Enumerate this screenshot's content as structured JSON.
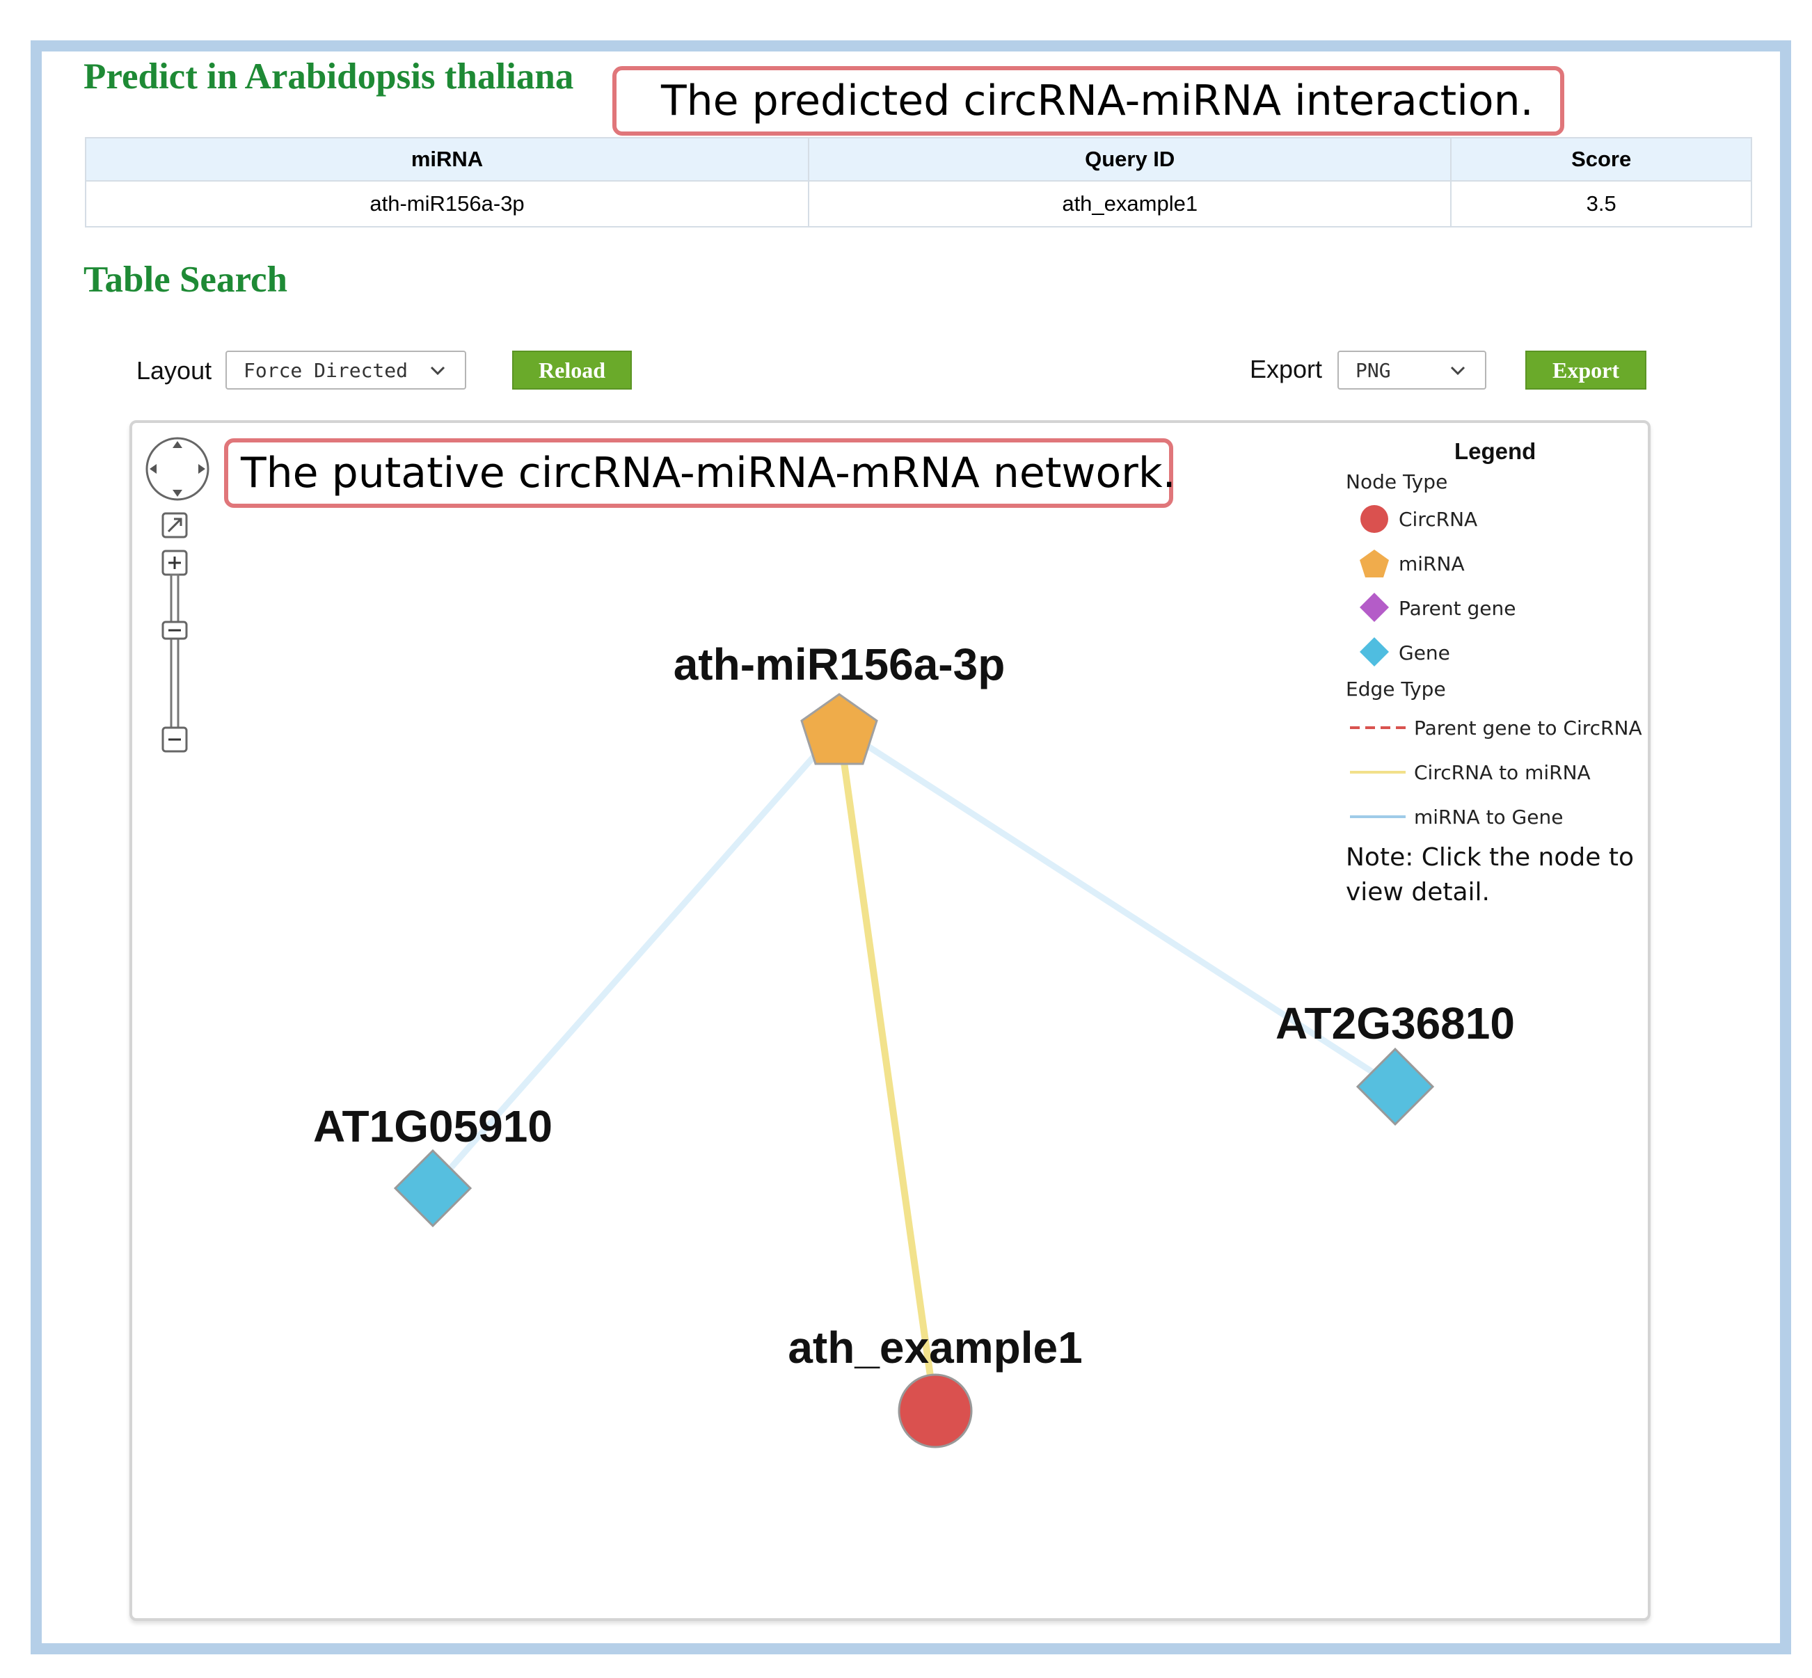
{
  "header": {
    "title": "Predict in Arabidopsis thaliana",
    "section_title": "Table Search"
  },
  "callouts": {
    "interaction": "The predicted circRNA-miRNA interaction.",
    "network": "The putative circRNA-miRNA-mRNA network."
  },
  "result_table": {
    "columns": [
      "miRNA",
      "Query ID",
      "Score"
    ],
    "rows": [
      [
        "ath-miR156a-3p",
        "ath_example1",
        "3.5"
      ]
    ]
  },
  "controls": {
    "layout_label": "Layout",
    "layout_value": "Force Directed",
    "reload_label": "Reload",
    "export_label": "Export",
    "export_format": "PNG",
    "export_button": "Export"
  },
  "legend": {
    "title": "Legend",
    "node_type_label": "Node Type",
    "node_types": [
      {
        "label": "CircRNA",
        "shape": "circle",
        "color": "#d9534f"
      },
      {
        "label": "miRNA",
        "shape": "pentagon",
        "color": "#f0ad4e"
      },
      {
        "label": "Parent gene",
        "shape": "diamond",
        "color": "#b45cc8"
      },
      {
        "label": "Gene",
        "shape": "diamond",
        "color": "#5bc0de"
      }
    ],
    "edge_type_label": "Edge Type",
    "edge_types": [
      {
        "label": "Parent gene to CircRNA",
        "style": "dashed",
        "color": "#d9534f"
      },
      {
        "label": "CircRNA to miRNA",
        "style": "solid",
        "color": "#f2e08a"
      },
      {
        "label": "miRNA to Gene",
        "style": "solid",
        "color": "#9fcbe8"
      }
    ],
    "note": "Note: Click the node to view detail."
  },
  "network": {
    "nodes": [
      {
        "id": "ath-miR156a-3p",
        "type": "miRNA"
      },
      {
        "id": "AT1G05910",
        "type": "Gene"
      },
      {
        "id": "AT2G36810",
        "type": "Gene"
      },
      {
        "id": "ath_example1",
        "type": "CircRNA"
      }
    ],
    "edges": [
      {
        "source": "ath-miR156a-3p",
        "target": "AT1G05910",
        "type": "miRNA to Gene"
      },
      {
        "source": "ath-miR156a-3p",
        "target": "AT2G36810",
        "type": "miRNA to Gene"
      },
      {
        "source": "ath_example1",
        "target": "ath-miR156a-3p",
        "type": "CircRNA to miRNA"
      }
    ]
  }
}
